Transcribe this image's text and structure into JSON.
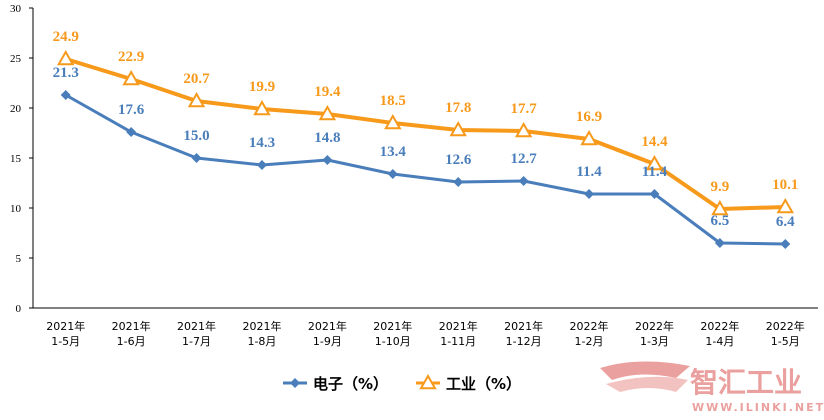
{
  "chart_data": {
    "type": "line",
    "categories": [
      [
        "2021年",
        "1-5月"
      ],
      [
        "2021年",
        "1-6月"
      ],
      [
        "2021年",
        "1-7月"
      ],
      [
        "2021年",
        "1-8月"
      ],
      [
        "2021年",
        "1-9月"
      ],
      [
        "2021年",
        "1-10月"
      ],
      [
        "2021年",
        "1-11月"
      ],
      [
        "2021年",
        "1-12月"
      ],
      [
        "2022年",
        "1-2月"
      ],
      [
        "2022年",
        "1-3月"
      ],
      [
        "2022年",
        "1-4月"
      ],
      [
        "2022年",
        "1-5月"
      ]
    ],
    "series": [
      {
        "name": "电子（%）",
        "values": [
          21.3,
          17.6,
          15.0,
          14.3,
          14.8,
          13.4,
          12.6,
          12.7,
          11.4,
          11.4,
          6.5,
          6.4
        ],
        "labels": [
          "21.3",
          "17.6",
          "15.0",
          "14.3",
          "14.8",
          "13.4",
          "12.6",
          "12.7",
          "11.4",
          "11.4",
          "6.5",
          "6.4"
        ],
        "color": "#4a7ebb",
        "marker": "diamond"
      },
      {
        "name": "工业（%）",
        "values": [
          24.9,
          22.9,
          20.7,
          19.9,
          19.4,
          18.5,
          17.8,
          17.7,
          16.9,
          14.4,
          9.9,
          10.1
        ],
        "labels": [
          "24.9",
          "22.9",
          "20.7",
          "19.9",
          "19.4",
          "18.5",
          "17.8",
          "17.7",
          "16.9",
          "14.4",
          "9.9",
          "10.1"
        ],
        "color": "#f79a1c",
        "marker": "triangle"
      }
    ],
    "yticks": [
      "0",
      "5",
      "10",
      "15",
      "20",
      "25",
      "30"
    ],
    "ylim": [
      0,
      30
    ],
    "grid": false,
    "legend": "bottom-center",
    "title": "",
    "xlabel": "",
    "ylabel": ""
  },
  "watermark": {
    "text": "智汇工业",
    "url": "WWW.ILINKI.NET",
    "color": "#d9534f"
  }
}
